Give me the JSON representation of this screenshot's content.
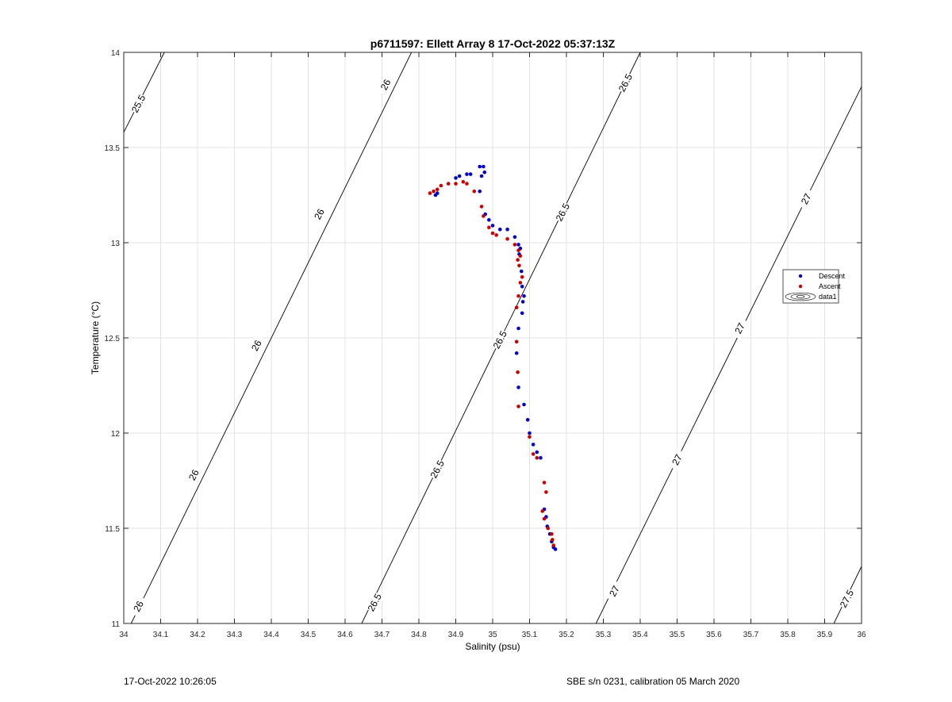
{
  "chart_data": {
    "type": "scatter",
    "title": "p6711597: Ellett Array 8 17-Oct-2022 05:37:13Z",
    "xlabel": "Salinity (psu)",
    "ylabel": "Temperature (°C)",
    "xlim": [
      34,
      36
    ],
    "ylim": [
      11,
      14
    ],
    "xticks": [
      "34",
      "34.1",
      "34.2",
      "34.3",
      "34.4",
      "34.5",
      "34.6",
      "34.7",
      "34.8",
      "34.9",
      "35",
      "35.1",
      "35.2",
      "35.3",
      "35.4",
      "35.5",
      "35.6",
      "35.7",
      "35.8",
      "35.9",
      "36"
    ],
    "yticks": [
      "11",
      "11.5",
      "12",
      "12.5",
      "13",
      "13.5",
      "14"
    ],
    "grid": true,
    "legend_position": "right",
    "legend": [
      "Descent",
      "Ascent",
      "data1"
    ],
    "series": [
      {
        "name": "Descent",
        "color": "#0000cc",
        "x": [
          34.965,
          34.975,
          34.978,
          34.97,
          34.94,
          34.93,
          34.91,
          34.9,
          34.85,
          34.845,
          34.965,
          34.98,
          34.99,
          35.0,
          35.02,
          35.04,
          35.06,
          35.07,
          35.075,
          35.072,
          35.078,
          35.08,
          35.085,
          35.082,
          35.08,
          35.07,
          35.065,
          35.07,
          35.085,
          35.095,
          35.1,
          35.11,
          35.12,
          35.13,
          35.14,
          35.145,
          35.148,
          35.155,
          35.16,
          35.165,
          35.17
        ],
        "y": [
          13.4,
          13.4,
          13.37,
          13.35,
          13.36,
          13.36,
          13.35,
          13.34,
          13.26,
          13.25,
          13.27,
          13.15,
          13.12,
          13.09,
          13.07,
          13.07,
          13.03,
          12.99,
          12.97,
          12.94,
          12.85,
          12.77,
          12.72,
          12.69,
          12.63,
          12.55,
          12.42,
          12.24,
          12.15,
          12.07,
          12.0,
          11.94,
          11.9,
          11.87,
          11.6,
          11.56,
          11.51,
          11.47,
          11.43,
          11.4,
          11.39
        ]
      },
      {
        "name": "Ascent",
        "color": "#cc0000",
        "x": [
          34.83,
          34.84,
          34.85,
          34.86,
          34.88,
          34.9,
          34.92,
          34.93,
          34.95,
          34.97,
          34.975,
          34.99,
          35.0,
          35.01,
          35.04,
          35.06,
          35.07,
          35.075,
          35.068,
          35.072,
          35.08,
          35.075,
          35.07,
          35.065,
          35.065,
          35.068,
          35.07,
          35.1,
          35.11,
          35.12,
          35.14,
          35.145,
          35.135,
          35.14,
          35.15,
          35.16,
          35.162,
          35.165
        ],
        "y": [
          13.26,
          13.27,
          13.28,
          13.3,
          13.31,
          13.31,
          13.32,
          13.31,
          13.27,
          13.19,
          13.14,
          13.08,
          13.05,
          13.04,
          13.02,
          12.99,
          12.96,
          12.93,
          12.91,
          12.88,
          12.82,
          12.79,
          12.72,
          12.66,
          12.48,
          12.32,
          12.14,
          11.98,
          11.89,
          11.87,
          11.74,
          11.69,
          11.59,
          11.55,
          11.5,
          11.47,
          11.44,
          11.41
        ]
      }
    ],
    "contours": [
      {
        "level": "25.5",
        "points": [
          [
            34,
            13.58
          ],
          [
            34.11,
            14.0
          ]
        ]
      },
      {
        "level": "26",
        "points": [
          [
            34.02,
            11.0
          ],
          [
            34.78,
            14.0
          ]
        ]
      },
      {
        "level": "26.5",
        "points": [
          [
            34.645,
            11.0
          ],
          [
            35.4,
            14.0
          ]
        ]
      },
      {
        "level": "27",
        "points": [
          [
            35.28,
            11.0
          ],
          [
            36.0,
            13.82
          ]
        ]
      },
      {
        "level": "27.5",
        "points": [
          [
            35.925,
            11.0
          ],
          [
            36.0,
            11.3
          ]
        ]
      }
    ],
    "contour_labels": [
      {
        "text": "25.5",
        "x": 34.04,
        "y": 13.73
      },
      {
        "text": "26",
        "x": 34.04,
        "y": 11.09
      },
      {
        "text": "26",
        "x": 34.19,
        "y": 11.78
      },
      {
        "text": "26",
        "x": 34.36,
        "y": 12.46
      },
      {
        "text": "26",
        "x": 34.53,
        "y": 13.15
      },
      {
        "text": "26",
        "x": 34.71,
        "y": 13.83
      },
      {
        "text": "26.5",
        "x": 34.68,
        "y": 11.11
      },
      {
        "text": "26.5",
        "x": 34.85,
        "y": 11.81
      },
      {
        "text": "26.5",
        "x": 35.02,
        "y": 12.49
      },
      {
        "text": "26.5",
        "x": 35.19,
        "y": 13.16
      },
      {
        "text": "26.5",
        "x": 35.36,
        "y": 13.84
      },
      {
        "text": "27",
        "x": 35.33,
        "y": 11.17
      },
      {
        "text": "27",
        "x": 35.5,
        "y": 11.86
      },
      {
        "text": "27",
        "x": 35.67,
        "y": 12.55
      },
      {
        "text": "27",
        "x": 35.85,
        "y": 13.23
      },
      {
        "text": "27.5",
        "x": 35.96,
        "y": 11.13
      }
    ]
  },
  "footer": {
    "timestamp": "17-Oct-2022 10:26:05",
    "calibration": "SBE s/n 0231, calibration 05 March 2020"
  }
}
